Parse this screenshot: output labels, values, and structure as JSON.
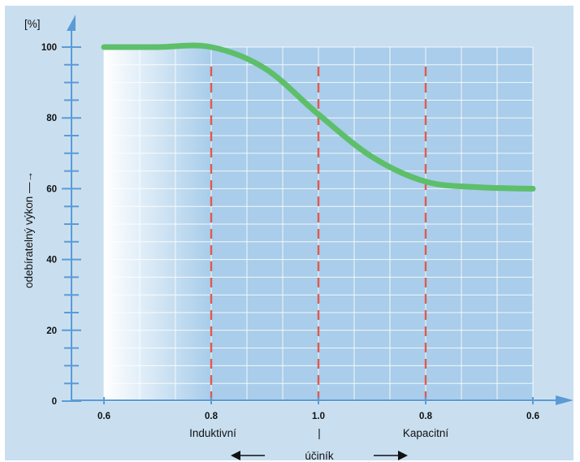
{
  "chart_data": {
    "type": "line",
    "y_unit": "[%]",
    "ylabel": "odebíratelný výkon —→",
    "ylim": [
      0,
      100
    ],
    "y_ticks": [
      "0",
      "20",
      "40",
      "60",
      "80",
      "100"
    ],
    "x_ticks": [
      "0.6",
      "0.8",
      "1.0",
      "0.8",
      "0.6"
    ],
    "x_region_labels": {
      "left": "Induktivní",
      "center": "|",
      "right": "Kapacitní"
    },
    "xlabel": "účiník",
    "x_domain": [
      "0.6 induktivní",
      "0.8 induktivní",
      "1.0",
      "0.8 kapacitní",
      "0.6 kapacitní"
    ],
    "series": [
      {
        "x": [
          "0.6 ind",
          "0.7 ind",
          "0.8 ind",
          "0.9 ind",
          "1.0",
          "0.9 kap",
          "0.8 kap",
          "0.7 kap",
          "0.6 kap"
        ],
        "values": [
          100,
          100,
          100,
          94,
          81,
          69,
          62,
          60.4,
          60
        ],
        "color": "#5dbf6a"
      }
    ],
    "reference_lines": [
      "0.8 induktivní",
      "1.0",
      "0.8 kapacitní"
    ],
    "grid": true,
    "colors": {
      "background": "#c9dff0",
      "plot_area": "#a9cdea",
      "grid": "#ffffff",
      "axis": "#5b9bd5",
      "reference_line": "#e05a4e",
      "curve": "#5dbf6a"
    }
  }
}
